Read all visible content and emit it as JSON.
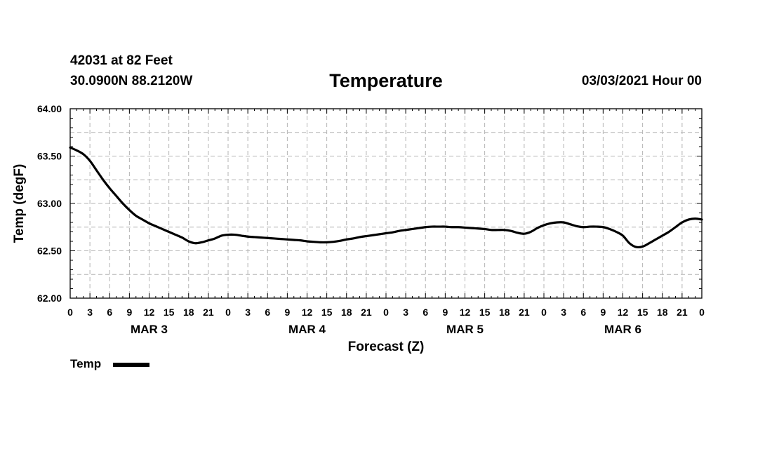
{
  "header": {
    "station": "42031 at 82 Feet",
    "coords": "30.0900N 88.2120W",
    "title": "Temperature",
    "issued": "03/03/2021 Hour 00"
  },
  "legend": {
    "label": "Temp"
  },
  "colors": {
    "line": "#000000",
    "grid": "#b4b4b4"
  },
  "chart_data": {
    "type": "line",
    "title": "Temperature",
    "xlabel": "Forecast (Z)",
    "ylabel": "Temp (degF)",
    "ylim": [
      62.0,
      64.0
    ],
    "xlim_hours": [
      0,
      96
    ],
    "yticks": [
      "62.00",
      "62.50",
      "63.00",
      "63.50",
      "64.00"
    ],
    "xtick_hours": [
      0,
      3,
      6,
      9,
      12,
      15,
      18,
      21,
      24,
      27,
      30,
      33,
      36,
      39,
      42,
      45,
      48,
      51,
      54,
      57,
      60,
      63,
      66,
      69,
      72,
      75,
      78,
      81,
      84,
      87,
      90,
      93,
      96
    ],
    "xtick_labels": [
      "0",
      "3",
      "6",
      "9",
      "12",
      "15",
      "18",
      "21",
      "0",
      "3",
      "6",
      "9",
      "12",
      "15",
      "18",
      "21",
      "0",
      "3",
      "6",
      "9",
      "12",
      "15",
      "18",
      "21",
      "0",
      "3",
      "6",
      "9",
      "12",
      "15",
      "18",
      "21",
      "0"
    ],
    "day_labels": [
      {
        "hour": 12,
        "label": "MAR 3"
      },
      {
        "hour": 36,
        "label": "MAR 4"
      },
      {
        "hour": 60,
        "label": "MAR 5"
      },
      {
        "hour": 84,
        "label": "MAR 6"
      }
    ],
    "grid": true,
    "series": [
      {
        "name": "Temp",
        "x": [
          0,
          1,
          2,
          3,
          4,
          5,
          6,
          7,
          8,
          9,
          10,
          11,
          12,
          13,
          14,
          15,
          16,
          17,
          18,
          19,
          20,
          21,
          22,
          23,
          24,
          25,
          26,
          27,
          28,
          29,
          30,
          31,
          32,
          33,
          34,
          35,
          36,
          37,
          38,
          39,
          40,
          41,
          42,
          43,
          44,
          45,
          46,
          47,
          48,
          49,
          50,
          51,
          52,
          53,
          54,
          55,
          56,
          57,
          58,
          59,
          60,
          61,
          62,
          63,
          64,
          65,
          66,
          67,
          68,
          69,
          70,
          71,
          72,
          73,
          74,
          75,
          76,
          77,
          78,
          79,
          80,
          81,
          82,
          83,
          84,
          85,
          86,
          87,
          88,
          89,
          90,
          91,
          92,
          93,
          94,
          95,
          96
        ],
        "values": [
          63.59,
          63.56,
          63.52,
          63.45,
          63.35,
          63.25,
          63.16,
          63.08,
          63.0,
          62.93,
          62.87,
          62.83,
          62.79,
          62.76,
          62.73,
          62.7,
          62.67,
          62.64,
          62.6,
          62.58,
          62.59,
          62.61,
          62.63,
          62.66,
          62.67,
          62.67,
          62.66,
          62.65,
          62.645,
          62.64,
          62.635,
          62.63,
          62.625,
          62.62,
          62.615,
          62.61,
          62.6,
          62.595,
          62.59,
          62.59,
          62.595,
          62.605,
          62.62,
          62.63,
          62.645,
          62.655,
          62.665,
          62.675,
          62.685,
          62.695,
          62.71,
          62.72,
          62.73,
          62.74,
          62.75,
          62.755,
          62.755,
          62.755,
          62.75,
          62.75,
          62.745,
          62.74,
          62.735,
          62.73,
          62.72,
          62.72,
          62.72,
          62.71,
          62.69,
          62.68,
          62.7,
          62.74,
          62.77,
          62.79,
          62.8,
          62.8,
          62.78,
          62.76,
          62.75,
          62.755,
          62.755,
          62.75,
          62.73,
          62.7,
          62.66,
          62.58,
          62.54,
          62.545,
          62.58,
          62.62,
          62.66,
          62.7,
          62.75,
          62.8,
          62.83,
          62.84,
          62.83
        ]
      }
    ]
  }
}
